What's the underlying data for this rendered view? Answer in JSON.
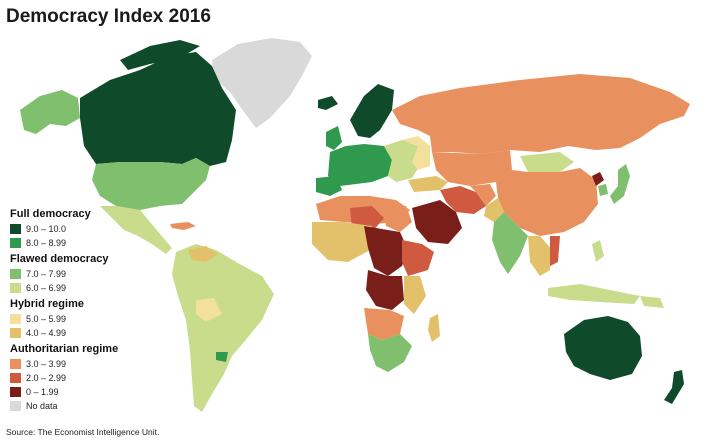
{
  "title": "Democracy Index 2016",
  "source": "Source: The Economist Intelligence Unit.",
  "legend": {
    "groups": [
      {
        "heading": "Full democracy",
        "items": [
          {
            "label": "9.0 – 10.0",
            "color": "#0f4a2a"
          },
          {
            "label": "8.0 – 8.99",
            "color": "#2f9a4e"
          }
        ]
      },
      {
        "heading": "Flawed democracy",
        "items": [
          {
            "label": "7.0 – 7.99",
            "color": "#7fbf6d"
          },
          {
            "label": "6.0 – 6.99",
            "color": "#c8dc8c"
          }
        ]
      },
      {
        "heading": "Hybrid regime",
        "items": [
          {
            "label": "5.0 – 5.99",
            "color": "#f3e09a"
          },
          {
            "label": "4.0 – 4.99",
            "color": "#e3c06a"
          }
        ]
      },
      {
        "heading": "Authoritarian regime",
        "items": [
          {
            "label": "3.0 – 3.99",
            "color": "#e8905e"
          },
          {
            "label": "2.0 – 2.99",
            "color": "#cf5a40"
          },
          {
            "label": "0 – 1.99",
            "color": "#7a1e1a"
          }
        ]
      }
    ],
    "no_data": {
      "label": "No data",
      "color": "#d9d9d9"
    }
  }
}
